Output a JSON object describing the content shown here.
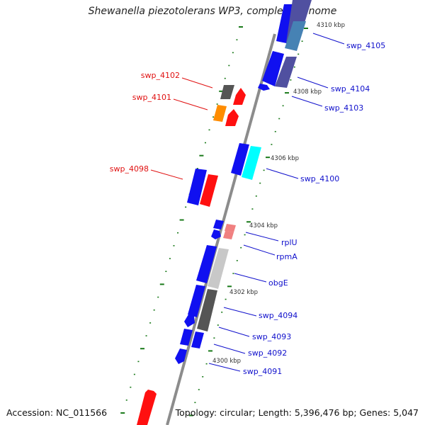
{
  "title": "Shewanella piezotolerans WP3, complete genome",
  "accession": "Accession: NC_011566",
  "summary": "Topology: circular; Length: 5,396,476 bp; Genes: 5,047",
  "colors": {
    "backbone": "#8c8c8c",
    "tick": "#1a7a1a",
    "label_left": "#e01010",
    "label_right": "#1010cc",
    "gene_blue": "#1010f0",
    "gene_red": "#ff1010",
    "gene_orange": "#ff8c00",
    "gene_dark": "#555555",
    "gene_navy": "#5050a0",
    "gene_cyan": "#00ffff",
    "gene_pink": "#f08080",
    "gene_silver": "#c8c8c8",
    "gene_steel": "#4682b4"
  },
  "kbp_labels": [
    "4310 kbp",
    "4308 kbp",
    "4306 kbp",
    "4304 kbp",
    "4302 kbp",
    "4300 kbp"
  ],
  "gene_labels_left": [
    "swp_4102",
    "swp_4101",
    "swp_4098"
  ],
  "gene_labels_right": [
    "swp_4105",
    "swp_4104",
    "swp_4103",
    "swp_4100",
    "rplU",
    "rpmA",
    "obgE",
    "swp_4094",
    "swp_4093",
    "swp_4092",
    "swp_4091"
  ]
}
